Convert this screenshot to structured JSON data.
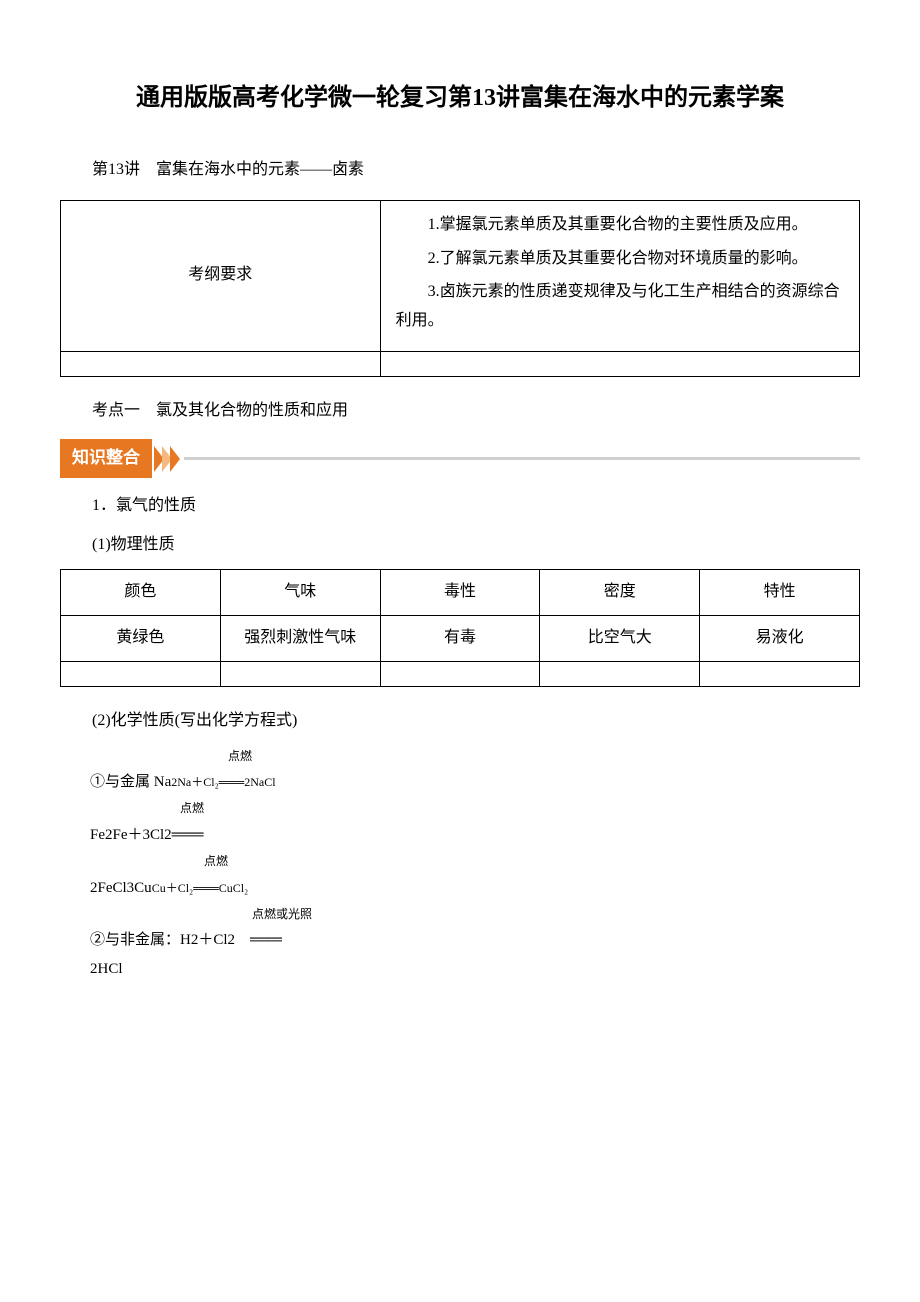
{
  "title": "通用版版高考化学微一轮复习第13讲富集在海水中的元素学案",
  "lecture_heading": "第13讲　富集在海水中的元素——卤素",
  "outline_table": {
    "left_label": "考纲要求",
    "items": [
      "1.掌握氯元素单质及其重要化合物的主要性质及应用。",
      "2.了解氯元素单质及其重要化合物对环境质量的影响。",
      "3.卤族元素的性质递变规律及与化工生产相结合的资源综合利用。"
    ]
  },
  "section_heading": "考点一　氯及其化合物的性质和应用",
  "banner_label": "知识整合",
  "banner_colors": {
    "main": "#e87722",
    "light": "#f5b880",
    "line": "#d0d0d0"
  },
  "sub1": "1．氯气的性质",
  "sub1_1": "(1)物理性质",
  "props_table": {
    "headers": [
      "颜色",
      "气味",
      "毒性",
      "密度",
      "特性"
    ],
    "rows": [
      [
        "黄绿色",
        "强烈刺激性气味",
        "有毒",
        "比空气大",
        "易液化"
      ]
    ]
  },
  "sub1_2": "(2)化学性质(写出化学方程式)",
  "reactions": {
    "r1_condition": "点燃",
    "r1_text": "①与金属 Na",
    "r1_formula": "2Na＋Cl₂═══2NaCl",
    "r2_condition": "点燃",
    "r2_text": "Fe2Fe＋3Cl2═══",
    "r3_condition": "点燃",
    "r3_text": "2FeCl3Cu",
    "r3_formula": "Cu＋Cl₂═══CuCl₂",
    "r4_condition": "点燃或光照",
    "r4_text": "②与非金属：H2＋Cl2　═══",
    "r5_text": "2HCl"
  }
}
